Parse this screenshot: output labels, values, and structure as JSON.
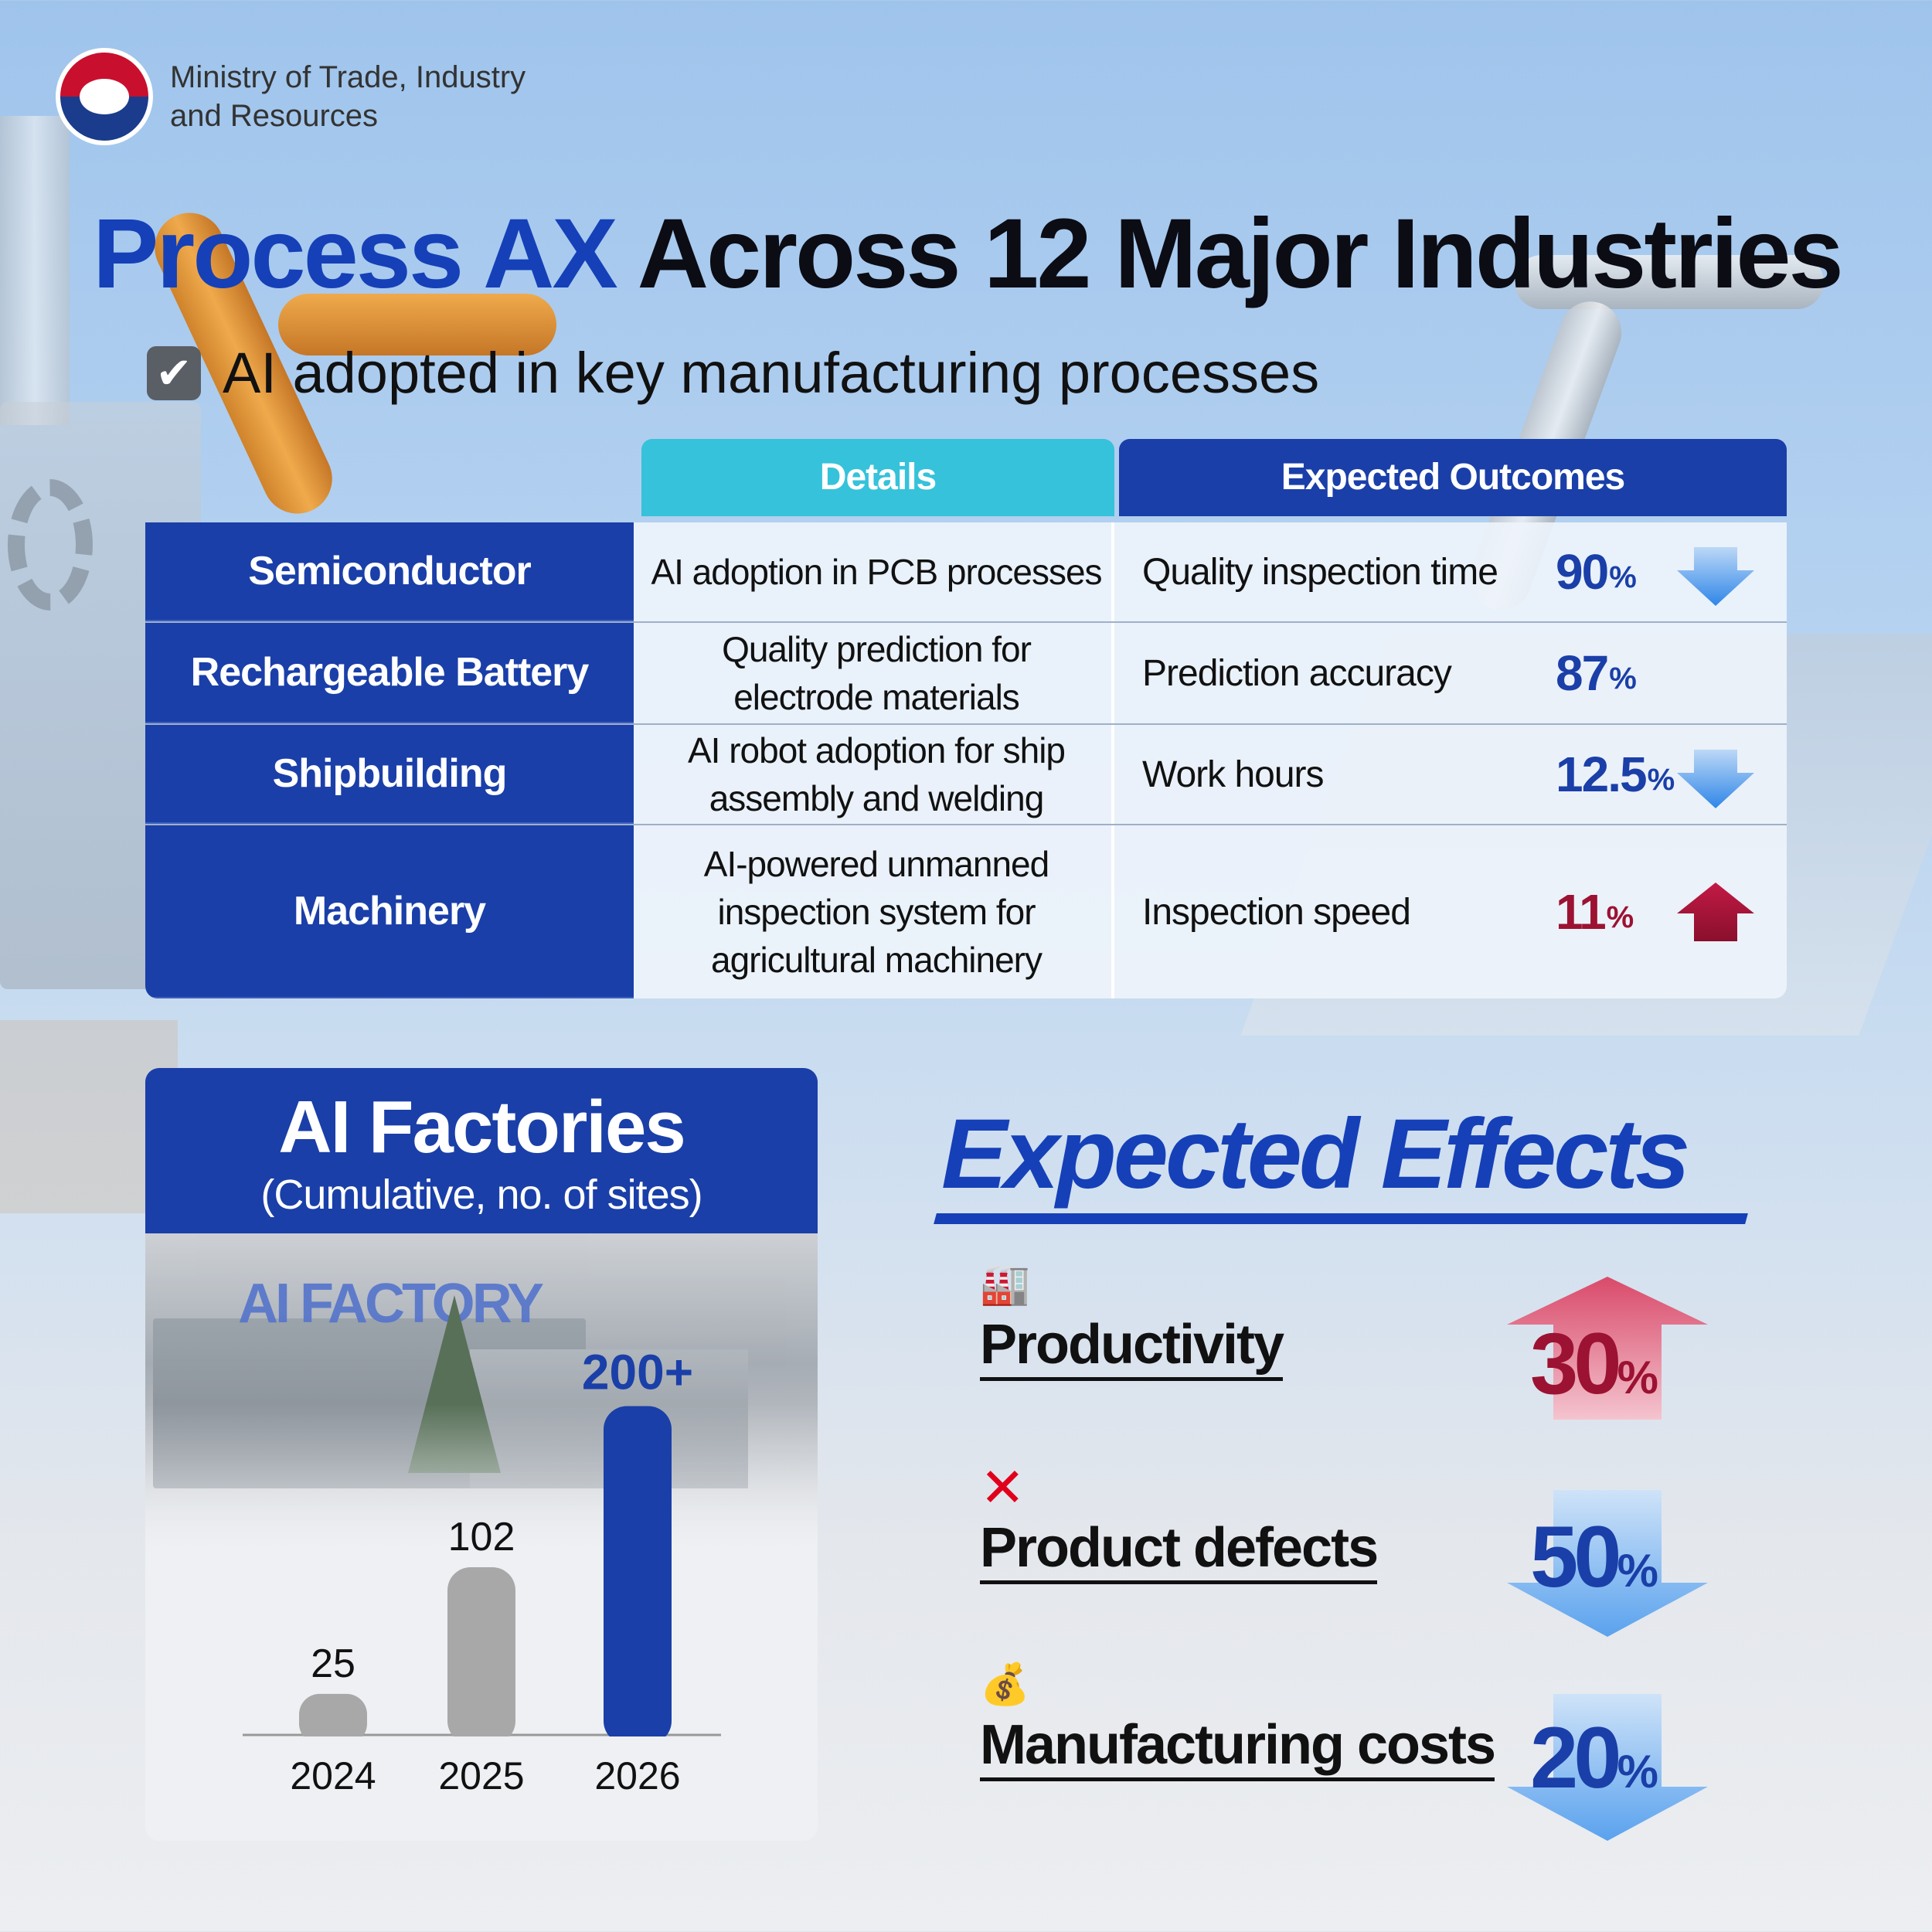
{
  "header": {
    "ministry_line1": "Ministry of Trade, Industry",
    "ministry_line2": "and Resources"
  },
  "title": {
    "highlight": "Process AX",
    "rest": "Across 12 Major Industries"
  },
  "subtitle": {
    "checkbox_icon": "check-icon",
    "text": "AI adopted in key manufacturing processes"
  },
  "table": {
    "headers": {
      "details": "Details",
      "outcomes": "Expected Outcomes"
    },
    "rows": [
      {
        "industry": "Semiconductor",
        "details": "AI adoption in PCB processes",
        "outcome": "Quality inspection time",
        "value": "90",
        "unit": "%",
        "direction": "down"
      },
      {
        "industry": "Rechargeable Battery",
        "details": "Quality prediction for electrode materials",
        "outcome": "Prediction accuracy",
        "value": "87",
        "unit": "%",
        "direction": "none"
      },
      {
        "industry": "Shipbuilding",
        "details": "AI robot adoption for ship assembly and welding",
        "outcome": "Work hours",
        "value": "12.5",
        "unit": "%",
        "direction": "down"
      },
      {
        "industry": "Machinery",
        "details": "AI-powered unmanned inspection system for agricultural machinery",
        "outcome": "Inspection speed",
        "value": "11",
        "unit": "%",
        "direction": "up"
      }
    ]
  },
  "ai_factories": {
    "title": "AI Factories",
    "subtitle": "(Cumulative, no. of sites)",
    "photo_sign": "AI FACTORY"
  },
  "chart_data": {
    "type": "bar",
    "title": "AI Factories",
    "subtitle": "(Cumulative, no. of sites)",
    "categories": [
      "2024",
      "2025",
      "2026"
    ],
    "values": [
      25,
      102,
      200
    ],
    "data_labels": [
      "25",
      "102",
      "200+"
    ],
    "bar_colors": [
      "#a8a8a8",
      "#a8a8a8",
      "#1a3fa8"
    ],
    "ylim": [
      0,
      220
    ],
    "grid": false
  },
  "expected_effects": {
    "title": "Expected Effects",
    "items": [
      {
        "icon": "factory-icon",
        "label": "Productivity",
        "value": "30",
        "unit": "%",
        "direction": "up"
      },
      {
        "icon": "x-mark-icon",
        "label": "Product defects",
        "value": "50",
        "unit": "%",
        "direction": "down"
      },
      {
        "icon": "money-bag-icon",
        "label": "Manufacturing costs",
        "value": "20",
        "unit": "%",
        "direction": "down"
      }
    ]
  },
  "colors": {
    "primary_blue": "#1a3fa8",
    "title_blue": "#1540b8",
    "cyan": "#36c2da",
    "up_red": "#9c1232",
    "gray_bar": "#a8a8a8"
  }
}
